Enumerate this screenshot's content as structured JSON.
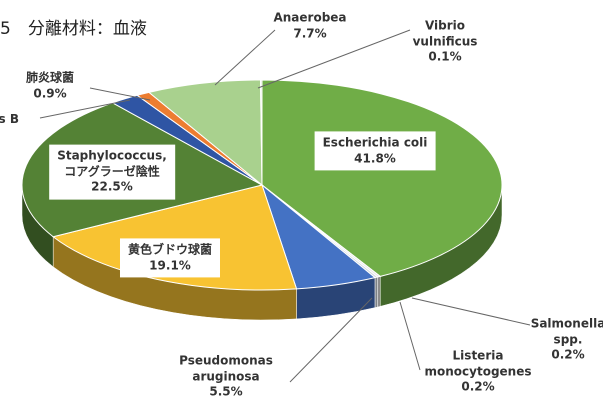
{
  "chart_data": {
    "type": "pie3d",
    "title": "5　分離材料：血液",
    "categories": [
      "Escherichia coli",
      "Salmonella\nspp.",
      "Listeria\nmonocytogenes",
      "Pseudomonas\naruginosa",
      "黄色ブドウ球菌",
      "Staphylococcus,\nコアグラーゼ陰性",
      "us B",
      "肺炎球菌",
      "Anaerobea",
      "Vibrio\nvulnificus"
    ],
    "values": [
      41.8,
      0.2,
      0.2,
      5.5,
      19.1,
      22.5,
      2.0,
      0.9,
      7.7,
      0.1
    ],
    "value_labels": [
      "41.8%",
      "0.2%",
      "0.2%",
      "5.5%",
      "19.1%",
      "22.5%",
      null,
      "0.9%",
      "7.7%",
      "0.1%"
    ],
    "colors": [
      "#70ad47",
      "#e8e8e8",
      "#d0d8e0",
      "#4472c4",
      "#f8c332",
      "#548235",
      "#2f55a4",
      "#ed7d31",
      "#a9d18e",
      "#dfe8d6"
    ]
  }
}
